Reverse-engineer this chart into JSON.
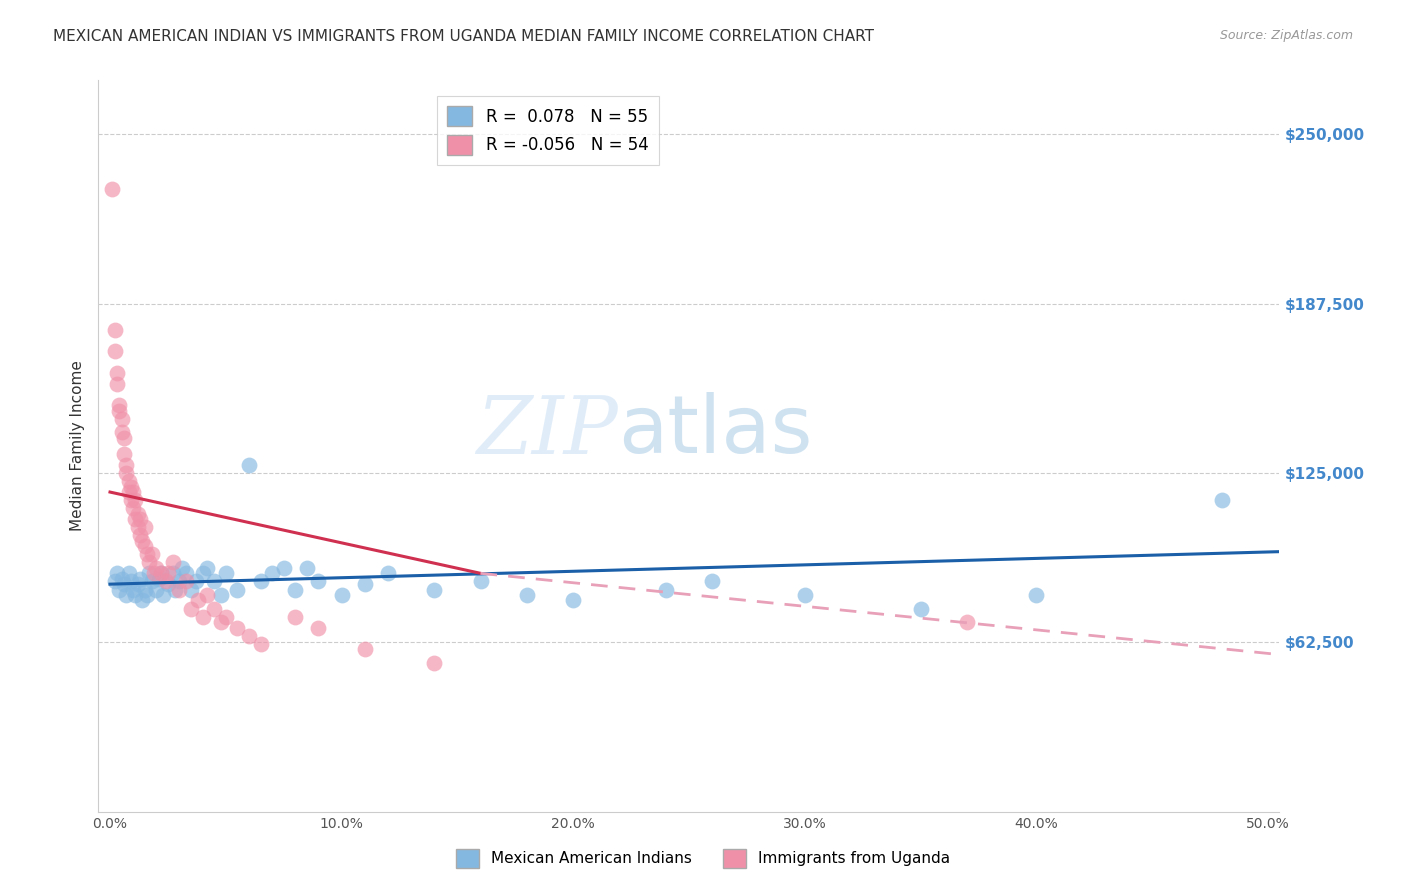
{
  "title": "MEXICAN AMERICAN INDIAN VS IMMIGRANTS FROM UGANDA MEDIAN FAMILY INCOME CORRELATION CHART",
  "source": "Source: ZipAtlas.com",
  "ylabel": "Median Family Income",
  "xlabel_ticks": [
    "0.0%",
    "10.0%",
    "20.0%",
    "30.0%",
    "40.0%",
    "50.0%"
  ],
  "xlabel_vals": [
    0.0,
    0.1,
    0.2,
    0.3,
    0.4,
    0.5
  ],
  "ylim": [
    0,
    270000
  ],
  "xlim": [
    -0.005,
    0.505
  ],
  "ytick_vals": [
    62500,
    125000,
    187500,
    250000
  ],
  "ytick_labels": [
    "$62,500",
    "$125,000",
    "$187,500",
    "$250,000"
  ],
  "legend_entries": [
    {
      "label": "R =  0.078   N = 55",
      "color": "#a8c4e0"
    },
    {
      "label": "R = -0.056   N = 54",
      "color": "#f4a0b0"
    }
  ],
  "legend_labels": [
    "Mexican American Indians",
    "Immigrants from Uganda"
  ],
  "blue_color": "#85b8e0",
  "pink_color": "#f090a8",
  "trendline_blue": "#1a5fa8",
  "trendline_pink": "#d03050",
  "trendline_pink_dash": "#e8a0b8",
  "blue_scatter_x": [
    0.002,
    0.003,
    0.004,
    0.005,
    0.006,
    0.007,
    0.008,
    0.009,
    0.01,
    0.011,
    0.012,
    0.013,
    0.014,
    0.015,
    0.016,
    0.017,
    0.018,
    0.02,
    0.021,
    0.022,
    0.023,
    0.025,
    0.027,
    0.028,
    0.03,
    0.031,
    0.033,
    0.035,
    0.037,
    0.04,
    0.042,
    0.045,
    0.048,
    0.05,
    0.055,
    0.06,
    0.065,
    0.07,
    0.075,
    0.08,
    0.085,
    0.09,
    0.1,
    0.11,
    0.12,
    0.14,
    0.16,
    0.18,
    0.2,
    0.24,
    0.26,
    0.3,
    0.35,
    0.4,
    0.48
  ],
  "blue_scatter_y": [
    85000,
    88000,
    82000,
    86000,
    84000,
    80000,
    88000,
    85000,
    82000,
    80000,
    84000,
    86000,
    78000,
    82000,
    80000,
    88000,
    85000,
    82000,
    86000,
    88000,
    80000,
    84000,
    88000,
    82000,
    85000,
    90000,
    88000,
    82000,
    85000,
    88000,
    90000,
    85000,
    80000,
    88000,
    82000,
    128000,
    85000,
    88000,
    90000,
    82000,
    90000,
    85000,
    80000,
    84000,
    88000,
    82000,
    85000,
    80000,
    78000,
    82000,
    85000,
    80000,
    75000,
    80000,
    115000
  ],
  "pink_scatter_x": [
    0.001,
    0.002,
    0.002,
    0.003,
    0.003,
    0.004,
    0.004,
    0.005,
    0.005,
    0.006,
    0.006,
    0.007,
    0.007,
    0.008,
    0.008,
    0.009,
    0.009,
    0.01,
    0.01,
    0.011,
    0.011,
    0.012,
    0.012,
    0.013,
    0.013,
    0.014,
    0.015,
    0.015,
    0.016,
    0.017,
    0.018,
    0.019,
    0.02,
    0.022,
    0.024,
    0.025,
    0.027,
    0.03,
    0.033,
    0.035,
    0.038,
    0.04,
    0.042,
    0.045,
    0.048,
    0.05,
    0.055,
    0.06,
    0.065,
    0.08,
    0.09,
    0.11,
    0.14,
    0.37
  ],
  "pink_scatter_y": [
    230000,
    178000,
    170000,
    162000,
    158000,
    150000,
    148000,
    145000,
    140000,
    138000,
    132000,
    128000,
    125000,
    122000,
    118000,
    120000,
    115000,
    112000,
    118000,
    108000,
    115000,
    110000,
    105000,
    108000,
    102000,
    100000,
    105000,
    98000,
    95000,
    92000,
    95000,
    88000,
    90000,
    88000,
    85000,
    88000,
    92000,
    82000,
    85000,
    75000,
    78000,
    72000,
    80000,
    75000,
    70000,
    72000,
    68000,
    65000,
    62000,
    72000,
    68000,
    60000,
    55000,
    70000
  ],
  "background_color": "#ffffff",
  "grid_color": "#cccccc",
  "title_fontsize": 11,
  "source_fontsize": 9,
  "ylabel_fontsize": 11,
  "ytick_color": "#4488cc",
  "xtick_color": "#555555",
  "trendline_blue_x0": 0.0,
  "trendline_blue_x1": 0.505,
  "trendline_blue_y0": 84000,
  "trendline_blue_y1": 96000,
  "trendline_pink_solid_x0": 0.0,
  "trendline_pink_solid_x1": 0.16,
  "trendline_pink_solid_y0": 118000,
  "trendline_pink_solid_y1": 88000,
  "trendline_pink_dash_x0": 0.16,
  "trendline_pink_dash_x1": 0.505,
  "trendline_pink_dash_y0": 88000,
  "trendline_pink_dash_y1": 58000
}
